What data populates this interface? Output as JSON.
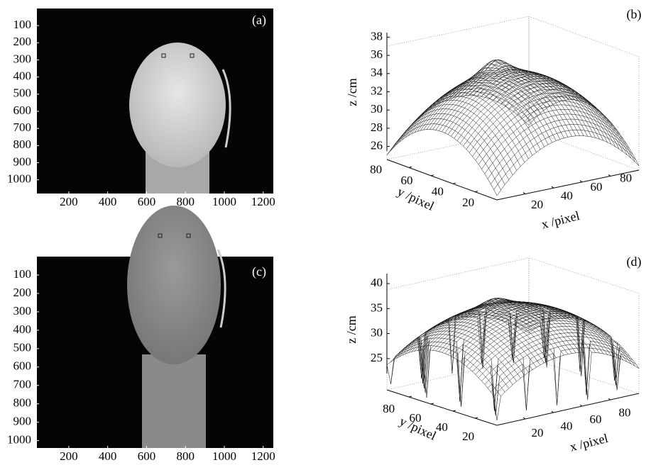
{
  "panels": [
    {
      "label": "(a)",
      "type": "image",
      "xlim": [
        36,
        1252
      ],
      "ylim": [
        0,
        1080
      ],
      "xticks": [
        200,
        400,
        600,
        800,
        1000,
        1200
      ],
      "yticks": [
        100,
        200,
        300,
        400,
        500,
        600,
        700,
        800,
        900,
        1000
      ]
    },
    {
      "label": "(b)",
      "type": "surface",
      "zlabel": "z /cm",
      "ylabel": "y /pixel",
      "xlabel": "x /pixel",
      "xlim": [
        0,
        100
      ],
      "ylim": [
        0,
        100
      ],
      "zlim": [
        25.5,
        38.5
      ],
      "xticks": [
        20,
        40,
        60,
        80
      ],
      "yticks": [
        20,
        40,
        60,
        80
      ],
      "zticks": [
        26,
        28,
        30,
        32,
        34,
        36,
        38
      ]
    },
    {
      "label": "(c)",
      "type": "image",
      "xlim": [
        36,
        1252
      ],
      "ylim": [
        0,
        1040
      ],
      "xticks": [
        200,
        400,
        600,
        800,
        1000,
        1200
      ],
      "yticks": [
        100,
        200,
        300,
        400,
        500,
        600,
        700,
        800,
        900,
        1000
      ]
    },
    {
      "label": "(d)",
      "type": "surface",
      "zlabel": "z /cm",
      "ylabel": "y /pixel",
      "xlabel": "x /pixel",
      "xlim": [
        0,
        100
      ],
      "ylim": [
        0,
        100
      ],
      "zlim": [
        22,
        42
      ],
      "xticks": [
        20,
        40,
        60,
        80
      ],
      "yticks": [
        20,
        40,
        60,
        80
      ],
      "zticks": [
        25,
        30,
        35,
        40
      ]
    }
  ]
}
